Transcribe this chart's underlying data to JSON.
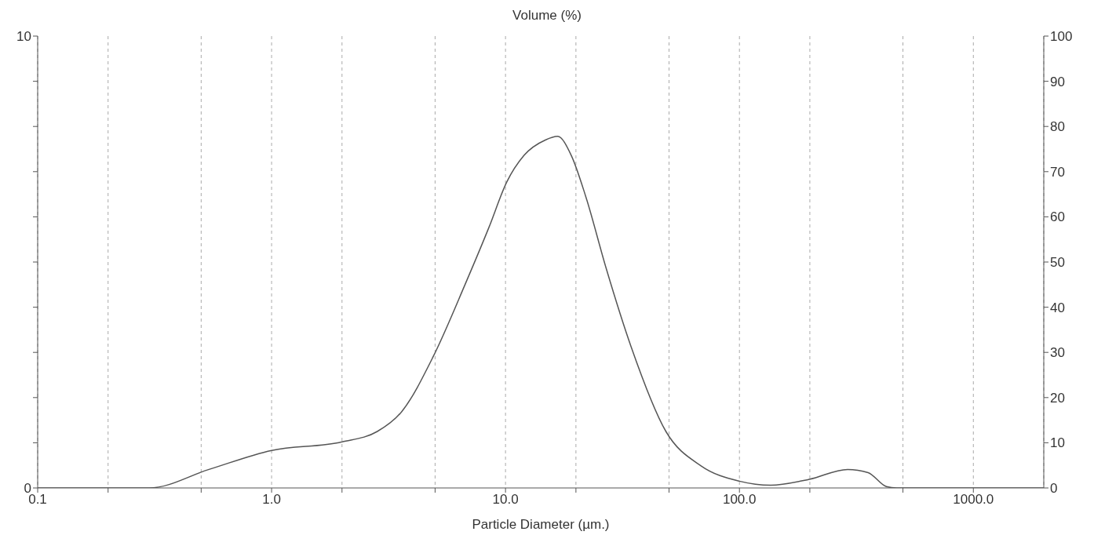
{
  "chart_data": {
    "type": "line",
    "title": "Volume (%)",
    "xlabel": "Particle Diameter (µm.)",
    "x": [
      0.1,
      0.3,
      0.54,
      1.0,
      2.0,
      2.83,
      3.6,
      4.9,
      6.7,
      8.5,
      10.1,
      12.0,
      14.8,
      16.7,
      19.1,
      22,
      26.9,
      34.4,
      48.5,
      68.5,
      100,
      136,
      199,
      290,
      355,
      425,
      470,
      2000
    ],
    "series": [
      {
        "color": "#555555",
        "values": [
          0,
          0,
          0.41,
          0.83,
          1.02,
          1.25,
          1.69,
          2.9,
          4.49,
          5.77,
          6.76,
          7.36,
          7.7,
          7.78,
          7.36,
          6.46,
          4.87,
          3.13,
          1.25,
          0.49,
          0.15,
          0.06,
          0.19,
          0.41,
          0.34,
          0.03,
          0,
          0
        ]
      }
    ],
    "log": "x",
    "xlim": [
      0.1,
      2000
    ],
    "xticks": [
      {
        "value": 0.1,
        "label": "0.1"
      },
      {
        "value": 0.2,
        "label": null
      },
      {
        "value": 0.5,
        "label": null
      },
      {
        "value": 1,
        "label": "1.0"
      },
      {
        "value": 2,
        "label": null
      },
      {
        "value": 5,
        "label": null
      },
      {
        "value": 10,
        "label": "10.0"
      },
      {
        "value": 20,
        "label": null
      },
      {
        "value": 50,
        "label": null
      },
      {
        "value": 100,
        "label": "100.0"
      },
      {
        "value": 200,
        "label": null
      },
      {
        "value": 500,
        "label": null
      },
      {
        "value": 1000,
        "label": "1000.0"
      }
    ],
    "ylim": [
      0,
      10
    ],
    "yticks": [
      0,
      {
        "value": 1,
        "label": null
      },
      {
        "value": 2,
        "label": null
      },
      {
        "value": 3,
        "label": null
      },
      {
        "value": 4,
        "label": null
      },
      {
        "value": 5,
        "label": null
      },
      {
        "value": 6,
        "label": null
      },
      {
        "value": 7,
        "label": null
      },
      {
        "value": 8,
        "label": null
      },
      {
        "value": 9,
        "label": null
      },
      10
    ],
    "y2lim": [
      0,
      100
    ],
    "y2ticks": [
      0,
      10,
      20,
      30,
      40,
      50,
      60,
      70,
      80,
      90,
      100
    ],
    "grid": "x",
    "legend": false,
    "marker": "none",
    "line_style": "solid"
  }
}
